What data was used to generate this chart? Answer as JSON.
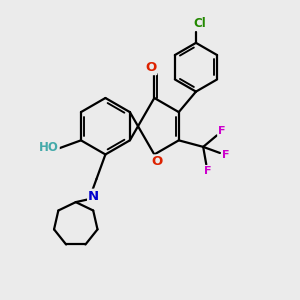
{
  "bg_color": "#ebebeb",
  "bond_color": "#000000",
  "bond_width": 1.6,
  "atom_colors": {
    "O": "#dd2200",
    "HO": "#44aaaa",
    "N": "#0000cc",
    "F": "#cc00cc",
    "Cl": "#228800"
  },
  "font_size": 8.5,
  "font_size_cl": 8.0
}
